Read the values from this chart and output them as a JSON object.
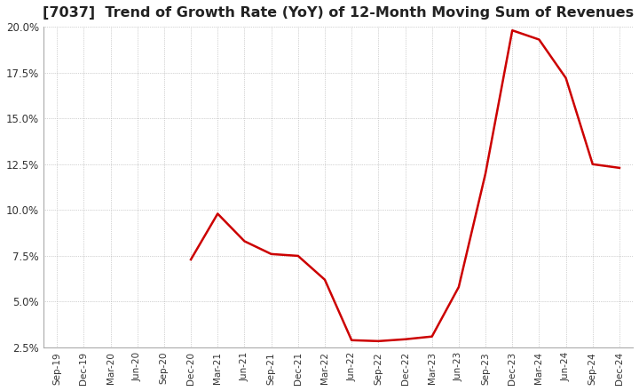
{
  "title": "[7037]  Trend of Growth Rate (YoY) of 12-Month Moving Sum of Revenues",
  "title_fontsize": 11.5,
  "line_color": "#cc0000",
  "background_color": "#ffffff",
  "grid_color": "#aaaaaa",
  "x_labels": [
    "Sep-19",
    "Dec-19",
    "Mar-20",
    "Jun-20",
    "Sep-20",
    "Dec-20",
    "Mar-21",
    "Jun-21",
    "Sep-21",
    "Dec-21",
    "Mar-22",
    "Jun-22",
    "Sep-22",
    "Dec-22",
    "Mar-23",
    "Jun-23",
    "Sep-23",
    "Dec-23",
    "Mar-24",
    "Jun-24",
    "Sep-24",
    "Dec-24"
  ],
  "y_values": [
    null,
    null,
    null,
    null,
    null,
    7.3,
    9.8,
    8.3,
    7.6,
    7.5,
    6.2,
    2.9,
    2.85,
    2.95,
    3.1,
    5.8,
    12.0,
    19.8,
    19.3,
    17.2,
    12.5,
    12.3
  ],
  "ylim": [
    2.5,
    20.0
  ],
  "yticks": [
    2.5,
    5.0,
    7.5,
    10.0,
    12.5,
    15.0,
    17.5,
    20.0
  ]
}
